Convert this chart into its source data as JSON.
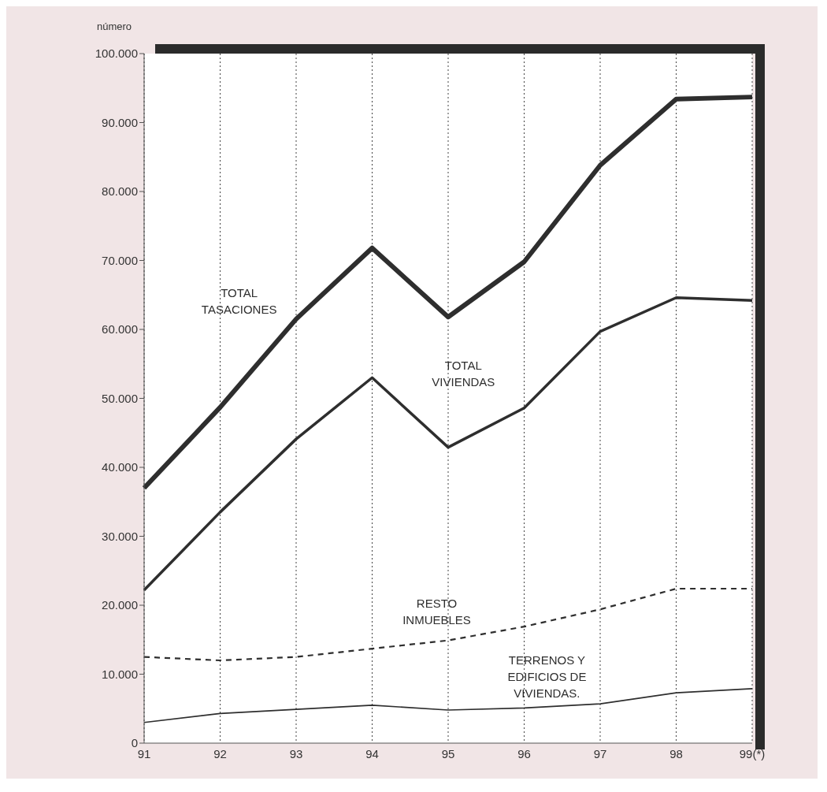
{
  "chart_data": {
    "type": "line",
    "ylabel": "número",
    "categories": [
      "91",
      "92",
      "93",
      "94",
      "95",
      "96",
      "97",
      "98",
      "99(*)"
    ],
    "series": [
      {
        "name": "TOTAL TASACIONES",
        "color": "#2e2e2e",
        "line_style": "solid",
        "values": [
          37000,
          48700,
          61500,
          71800,
          61800,
          69800,
          83800,
          93400,
          93700
        ]
      },
      {
        "name": "TOTAL VIVIENDAS",
        "color": "#2e2e2e",
        "line_style": "solid",
        "values": [
          22200,
          33500,
          44100,
          53000,
          42900,
          48600,
          59700,
          64600,
          64200
        ]
      },
      {
        "name": "RESTO INMUEBLES",
        "color": "#2e2e2e",
        "line_style": "dashed",
        "values": [
          12500,
          12000,
          12500,
          13700,
          14900,
          16900,
          19400,
          22400,
          22400
        ]
      },
      {
        "name": "TERRENOS Y EDIFICIOS DE VIVIENDAS.",
        "color": "#2e2e2e",
        "line_style": "solid",
        "values": [
          3000,
          4300,
          4900,
          5500,
          4800,
          5100,
          5700,
          7300,
          7900
        ]
      }
    ],
    "ylim": [
      0,
      100000
    ],
    "yticks": [
      0,
      {
        "value": 10000,
        "label": "10.000"
      },
      {
        "value": 20000,
        "label": "20.000"
      },
      {
        "value": 30000,
        "label": "30.000"
      },
      {
        "value": 40000,
        "label": "40.000"
      },
      {
        "value": 50000,
        "label": "50.000"
      },
      {
        "value": 60000,
        "label": "60.000"
      },
      {
        "value": 70000,
        "label": "70.000"
      },
      {
        "value": 80000,
        "label": "80.000"
      },
      {
        "value": 90000,
        "label": "90.000"
      },
      {
        "value": 100000,
        "label": "100.000"
      }
    ],
    "grid": "x",
    "legend": false,
    "marker": "none"
  }
}
